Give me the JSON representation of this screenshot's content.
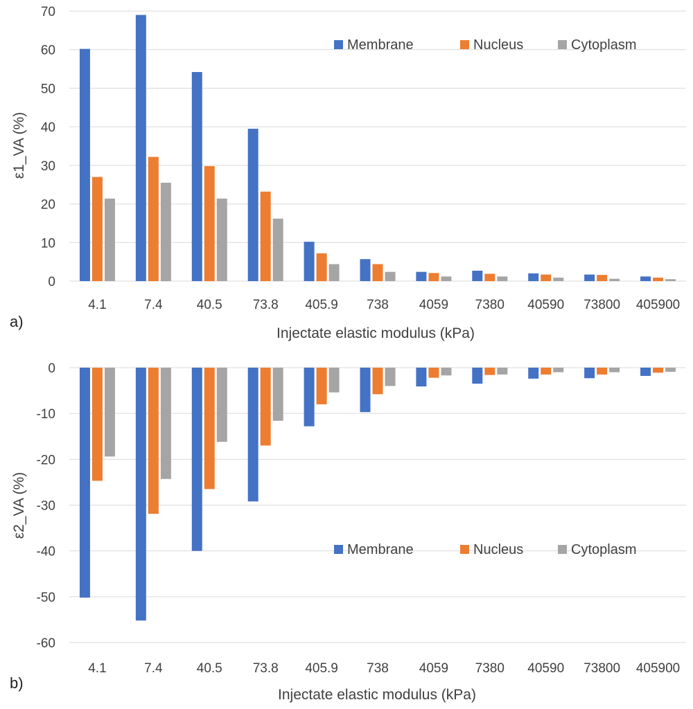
{
  "chart_data": [
    {
      "type": "bar",
      "panel_label": "a)",
      "title": "",
      "xlabel": "Injectate elastic modulus (kPa)",
      "ylabel": "ε1_VA (%)",
      "ylim": [
        0,
        70
      ],
      "yticks": [
        0,
        10,
        20,
        30,
        40,
        50,
        60,
        70
      ],
      "grid": true,
      "legend_position": "top-right",
      "categories": [
        "4.1",
        "7.4",
        "40.5",
        "73.8",
        "405.9",
        "738",
        "4059",
        "7380",
        "40590",
        "73800",
        "405900"
      ],
      "series": [
        {
          "name": "Membrane",
          "color": "#4472c4",
          "values": [
            60.2,
            69.0,
            54.2,
            39.5,
            10.2,
            5.7,
            2.4,
            2.7,
            2.0,
            1.7,
            1.2
          ]
        },
        {
          "name": "Nucleus",
          "color": "#ed7d31",
          "values": [
            27.0,
            32.2,
            29.8,
            23.2,
            7.2,
            4.4,
            2.1,
            1.9,
            1.7,
            1.6,
            0.9
          ]
        },
        {
          "name": "Cytoplasm",
          "color": "#a5a5a5",
          "values": [
            21.4,
            25.5,
            21.4,
            16.2,
            4.4,
            2.4,
            1.2,
            1.2,
            0.9,
            0.6,
            0.5
          ]
        }
      ]
    },
    {
      "type": "bar",
      "panel_label": "b)",
      "title": "",
      "xlabel": "Injectate elastic modulus (kPa)",
      "ylabel": "ε2_VA (%)",
      "ylim": [
        -60,
        0
      ],
      "yticks": [
        0,
        -10,
        -20,
        -30,
        -40,
        -50,
        -60
      ],
      "grid": true,
      "legend_position": "middle-right",
      "categories": [
        "4.1",
        "7.4",
        "40.5",
        "73.8",
        "405.9",
        "738",
        "4059",
        "7380",
        "40590",
        "73800",
        "405900"
      ],
      "series": [
        {
          "name": "Membrane",
          "color": "#4472c4",
          "values": [
            -50.2,
            -55.2,
            -40.0,
            -29.2,
            -12.8,
            -9.7,
            -4.1,
            -3.5,
            -2.4,
            -2.3,
            -1.8
          ]
        },
        {
          "name": "Nucleus",
          "color": "#ed7d31",
          "values": [
            -24.7,
            -31.9,
            -26.5,
            -17.0,
            -8.0,
            -5.8,
            -2.2,
            -1.6,
            -1.5,
            -1.5,
            -1.1
          ]
        },
        {
          "name": "Cytoplasm",
          "color": "#a5a5a5",
          "values": [
            -19.4,
            -24.3,
            -16.2,
            -11.6,
            -5.4,
            -4.0,
            -1.7,
            -1.5,
            -1.0,
            -1.0,
            -0.9
          ]
        }
      ]
    }
  ]
}
